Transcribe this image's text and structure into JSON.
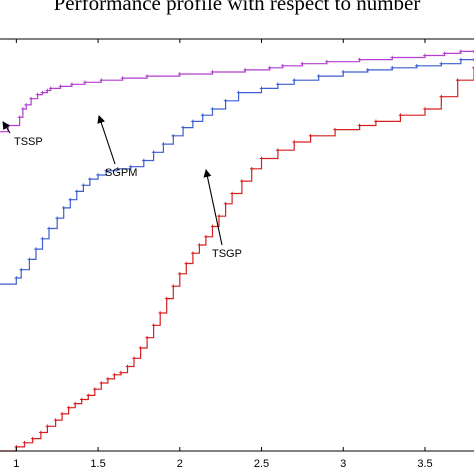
{
  "chart_data": {
    "type": "line",
    "title": "Performance profile with respect to number",
    "xlim": [
      0.9,
      3.8
    ],
    "ylim": [
      0.0,
      1.0
    ],
    "xticks": [
      1,
      1.5,
      2,
      2.5,
      3,
      3.5
    ],
    "xtick_labels": [
      "1",
      "1.5",
      "2",
      "2.5",
      "3",
      "3.5"
    ],
    "grid": false,
    "series": [
      {
        "name": "TSSP",
        "color": "#b23fcf",
        "x": [
          0.9,
          0.95,
          1.02,
          1.04,
          1.06,
          1.09,
          1.13,
          1.16,
          1.19,
          1.21,
          1.27,
          1.34,
          1.42,
          1.52,
          1.65,
          1.8,
          2.0,
          2.2,
          2.4,
          2.55,
          2.63,
          2.75,
          2.9,
          3.1,
          3.3,
          3.5,
          3.62,
          3.72,
          3.8
        ],
        "y": [
          0.775,
          0.79,
          0.81,
          0.83,
          0.84,
          0.855,
          0.865,
          0.87,
          0.875,
          0.88,
          0.885,
          0.89,
          0.895,
          0.9,
          0.905,
          0.91,
          0.915,
          0.92,
          0.925,
          0.93,
          0.935,
          0.94,
          0.945,
          0.95,
          0.955,
          0.96,
          0.965,
          0.97,
          0.97
        ]
      },
      {
        "name": "SGPM",
        "color": "#3d5fcf",
        "x": [
          0.9,
          1.0,
          1.03,
          1.08,
          1.12,
          1.16,
          1.2,
          1.25,
          1.29,
          1.33,
          1.37,
          1.41,
          1.45,
          1.5,
          1.55,
          1.62,
          1.7,
          1.78,
          1.84,
          1.9,
          1.96,
          2.02,
          2.08,
          2.14,
          2.2,
          2.28,
          2.36,
          2.5,
          2.6,
          2.7,
          2.85,
          3.0,
          3.15,
          3.3,
          3.45,
          3.6,
          3.72,
          3.8
        ],
        "y": [
          0.405,
          0.42,
          0.44,
          0.465,
          0.49,
          0.515,
          0.54,
          0.565,
          0.59,
          0.61,
          0.63,
          0.645,
          0.66,
          0.67,
          0.68,
          0.685,
          0.69,
          0.705,
          0.725,
          0.745,
          0.765,
          0.785,
          0.8,
          0.815,
          0.83,
          0.85,
          0.87,
          0.88,
          0.89,
          0.9,
          0.91,
          0.92,
          0.925,
          0.93,
          0.935,
          0.94,
          0.95,
          0.95
        ]
      },
      {
        "name": "TSGP",
        "color": "#d62020",
        "x": [
          0.9,
          1.0,
          1.05,
          1.1,
          1.15,
          1.19,
          1.24,
          1.28,
          1.32,
          1.36,
          1.4,
          1.44,
          1.48,
          1.52,
          1.56,
          1.6,
          1.64,
          1.68,
          1.72,
          1.76,
          1.8,
          1.84,
          1.88,
          1.92,
          1.96,
          2.0,
          2.04,
          2.08,
          2.12,
          2.16,
          2.2,
          2.24,
          2.28,
          2.32,
          2.38,
          2.44,
          2.5,
          2.6,
          2.7,
          2.8,
          2.95,
          3.1,
          3.2,
          3.35,
          3.5,
          3.6,
          3.7,
          3.8
        ],
        "y": [
          0.0,
          0.01,
          0.02,
          0.03,
          0.045,
          0.06,
          0.075,
          0.09,
          0.105,
          0.115,
          0.125,
          0.135,
          0.15,
          0.165,
          0.175,
          0.185,
          0.19,
          0.205,
          0.225,
          0.25,
          0.275,
          0.305,
          0.335,
          0.37,
          0.4,
          0.43,
          0.455,
          0.48,
          0.5,
          0.52,
          0.545,
          0.57,
          0.6,
          0.625,
          0.655,
          0.685,
          0.71,
          0.73,
          0.75,
          0.765,
          0.78,
          0.79,
          0.8,
          0.815,
          0.83,
          0.86,
          0.9,
          0.93
        ]
      }
    ],
    "annotations": [
      {
        "text": "TSSP",
        "series": "TSSP",
        "x": 0.9,
        "y": 0.775
      },
      {
        "text": "SGPM",
        "series": "SGPM",
        "x": 1.5,
        "y": 0.67
      },
      {
        "text": "TSGP",
        "series": "TSGP",
        "x": 2.16,
        "y": 0.52
      }
    ]
  }
}
